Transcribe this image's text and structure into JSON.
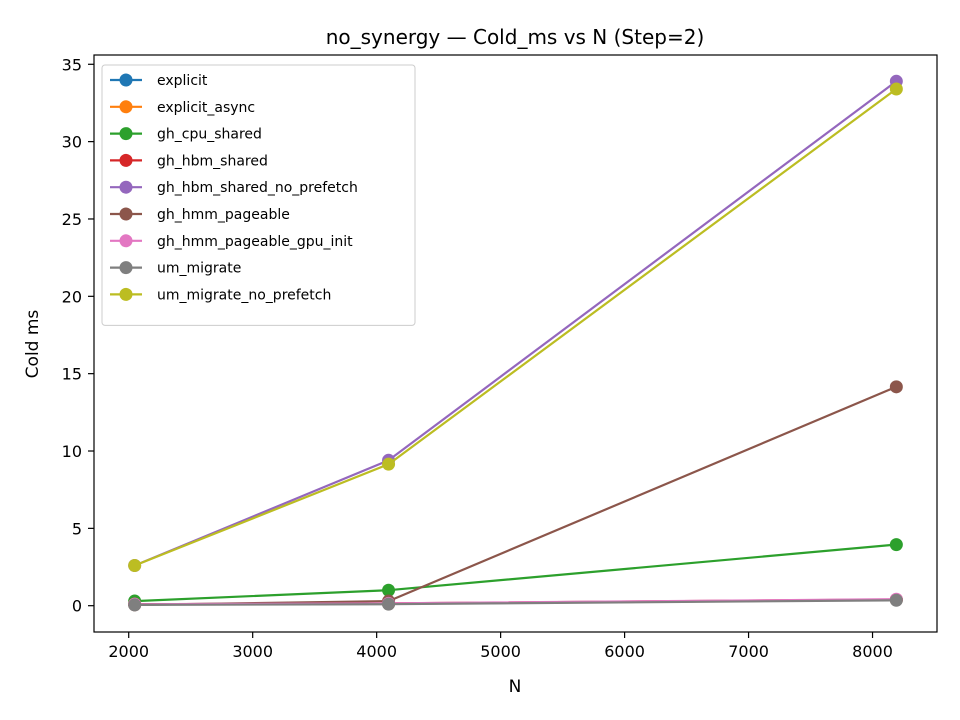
{
  "chart_data": {
    "type": "line",
    "title": "no_synergy — Cold_ms vs N (Step=2)",
    "xlabel": "N",
    "ylabel": "Cold ms",
    "xlim": [
      1720,
      8520
    ],
    "ylim": [
      -1.7,
      35.6
    ],
    "xticks": [
      2000,
      3000,
      4000,
      5000,
      6000,
      7000,
      8000
    ],
    "yticks": [
      0,
      5,
      10,
      15,
      20,
      25,
      30,
      35
    ],
    "grid": false,
    "legend_position": "upper-left",
    "x": [
      2048,
      4096,
      8192
    ],
    "series": [
      {
        "name": "explicit",
        "color": "#1f77b4",
        "values": [
          0.08,
          0.12,
          0.38
        ]
      },
      {
        "name": "explicit_async",
        "color": "#ff7f0e",
        "values": [
          0.08,
          0.12,
          0.38
        ]
      },
      {
        "name": "gh_cpu_shared",
        "color": "#2ca02c",
        "values": [
          0.3,
          1.0,
          3.95
        ]
      },
      {
        "name": "gh_hbm_shared",
        "color": "#d62728",
        "values": [
          0.1,
          0.15,
          0.4
        ]
      },
      {
        "name": "gh_hbm_shared_no_prefetch",
        "color": "#9467bd",
        "values": [
          2.6,
          9.4,
          33.9
        ]
      },
      {
        "name": "gh_hmm_pageable",
        "color": "#8c564b",
        "values": [
          0.05,
          0.3,
          14.15
        ]
      },
      {
        "name": "gh_hmm_pageable_gpu_init",
        "color": "#e377c2",
        "values": [
          0.1,
          0.15,
          0.42
        ]
      },
      {
        "name": "um_migrate",
        "color": "#7f7f7f",
        "values": [
          0.05,
          0.1,
          0.35
        ]
      },
      {
        "name": "um_migrate_no_prefetch",
        "color": "#bcbd22",
        "values": [
          2.6,
          9.15,
          33.4
        ]
      }
    ]
  }
}
